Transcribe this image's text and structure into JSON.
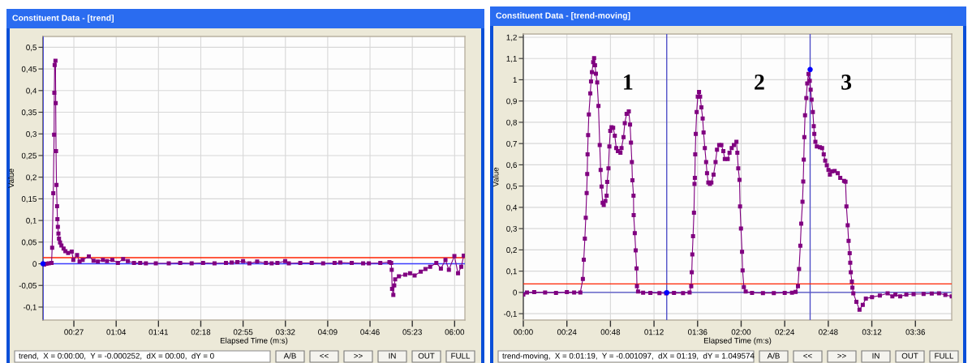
{
  "chart_data": [
    {
      "type": "line",
      "title": "Constituent Data - [trend]",
      "xlabel": "Elapsed Time (m:s)",
      "ylabel": "Value",
      "xlim": [
        0,
        369
      ],
      "ylim": [
        -0.13,
        0.525
      ],
      "xticks": [
        {
          "value": 27,
          "label": "00:27"
        },
        {
          "value": 64,
          "label": "01:04"
        },
        {
          "value": 101,
          "label": "01:41"
        },
        {
          "value": 138,
          "label": "02:18"
        },
        {
          "value": 175,
          "label": "02:55"
        },
        {
          "value": 212,
          "label": "03:32"
        },
        {
          "value": 249,
          "label": "04:09"
        },
        {
          "value": 286,
          "label": "04:46"
        },
        {
          "value": 323,
          "label": "05:23"
        },
        {
          "value": 360,
          "label": "06:00"
        }
      ],
      "yticks": [
        {
          "value": -0.1,
          "label": "-0,1"
        },
        {
          "value": -0.05,
          "label": "-0,05"
        },
        0,
        {
          "value": 0.05,
          "label": "0,05"
        },
        {
          "value": 0.1,
          "label": "0,1"
        },
        {
          "value": 0.15,
          "label": "0,15"
        },
        {
          "value": 0.2,
          "label": "0,2"
        },
        {
          "value": 0.25,
          "label": "0,25"
        },
        {
          "value": 0.3,
          "label": "0,3"
        },
        {
          "value": 0.35,
          "label": "0,35"
        },
        {
          "value": 0.4,
          "label": "0,4"
        },
        {
          "value": 0.45,
          "label": "0,45"
        },
        {
          "value": 0.5,
          "label": "0,5"
        }
      ],
      "grid": true,
      "marker": "square",
      "line_style": "solid",
      "series": [
        {
          "color": "#800080",
          "x": [
            1,
            3,
            5,
            7.5,
            8.0,
            9.0,
            9.7,
            9.9,
            10.2,
            10.9,
            11.1,
            11.4,
            11.8,
            12.3,
            12.6,
            13.0,
            13.5,
            14.0,
            14.9,
            16.1,
            18.0,
            19.6,
            22,
            25.1,
            26.5,
            29.8,
            32,
            34.7,
            40.1,
            44.2,
            48,
            52.4,
            56,
            60.6,
            65.5,
            70.1,
            74.2,
            79.6,
            85,
            90,
            98.7,
            110,
            120,
            130,
            140,
            150,
            160,
            165,
            170,
            175,
            180.5,
            187.3,
            195,
            200,
            205,
            211.8,
            215,
            225,
            235,
            245,
            255,
            260,
            270,
            280,
            285,
            295,
            303,
            304.5,
            305,
            305.3,
            306.4,
            307.2,
            308,
            311.3,
            316.8,
            321,
            325,
            330.4,
            334.5,
            338.6,
            344,
            348,
            352,
            355,
            359.8,
            363,
            365.8,
            368
          ],
          "values": [
            -0.002,
            0.0,
            0.001,
            0.002,
            0.037,
            0.163,
            0.298,
            0.395,
            0.459,
            0.469,
            0.371,
            0.26,
            0.182,
            0.133,
            0.103,
            0.085,
            0.07,
            0.058,
            0.049,
            0.042,
            0.035,
            0.029,
            0.025,
            0.028,
            0.009,
            0.02,
            0.005,
            0.009,
            0.017,
            0.007,
            0.005,
            0.009,
            0.006,
            0.009,
            0.002,
            0.011,
            0.006,
            0.002,
            0.002,
            0.001,
            0.001,
            0.001,
            0.002,
            0.001,
            0.002,
            0.001,
            0.002,
            0.003,
            0.004,
            0.006,
            0.001,
            0.005,
            0.002,
            0.001,
            0.002,
            0.006,
            0.001,
            0.002,
            0.002,
            0.001,
            0.002,
            0.003,
            0.002,
            0.001,
            0.001,
            0.002,
            0.004,
            0.002,
            -0.014,
            -0.058,
            -0.072,
            -0.05,
            -0.036,
            -0.029,
            -0.025,
            -0.022,
            -0.027,
            -0.018,
            -0.012,
            -0.007,
            0.002,
            -0.011,
            0.009,
            -0.014,
            0.018,
            -0.022,
            -0.007,
            0.019
          ]
        },
        {
          "type": "scatter",
          "color": "#0000ff",
          "marker": "circle",
          "x": [
            0
          ],
          "values": [
            0.0
          ]
        }
      ],
      "ref_lines": [
        {
          "axis": "x",
          "value": 0,
          "color": "#3c3cff"
        },
        {
          "axis": "y",
          "value": 0,
          "color": "#3c3cff"
        },
        {
          "axis": "y",
          "value": 0.014,
          "color": "#ff2200"
        }
      ],
      "annotations": [
        "trend,  X = 0:00:00,  Y = -0.000252,  dX = 00:00,  dY = 0",
        "A/B",
        "<<",
        ">>",
        "IN",
        "OUT",
        "FULL"
      ]
    },
    {
      "type": "line",
      "title": "Constituent Data - [trend-moving]",
      "xlabel": "Elapsed Time (m:s)",
      "ylabel": "Value",
      "xlim": [
        0,
        236
      ],
      "ylim": [
        -0.13,
        1.215
      ],
      "xticks": [
        {
          "value": 0,
          "label": "00:00"
        },
        {
          "value": 24,
          "label": "00:24"
        },
        {
          "value": 48,
          "label": "00:48"
        },
        {
          "value": 72,
          "label": "01:12"
        },
        {
          "value": 96,
          "label": "01:36"
        },
        {
          "value": 120,
          "label": "02:00"
        },
        {
          "value": 144,
          "label": "02:24"
        },
        {
          "value": 168,
          "label": "02:48"
        },
        {
          "value": 192,
          "label": "03:12"
        },
        {
          "value": 216,
          "label": "03:36"
        }
      ],
      "yticks": [
        {
          "value": -0.1,
          "label": "-0,1"
        },
        0,
        {
          "value": 0.1,
          "label": "0,1"
        },
        {
          "value": 0.2,
          "label": "0,2"
        },
        {
          "value": 0.3,
          "label": "0,3"
        },
        {
          "value": 0.4,
          "label": "0,4"
        },
        {
          "value": 0.5,
          "label": "0,5"
        },
        {
          "value": 0.6,
          "label": "0,6"
        },
        {
          "value": 0.7,
          "label": "0,7"
        },
        {
          "value": 0.8,
          "label": "0,8"
        },
        {
          "value": 0.9,
          "label": "0,9"
        },
        1,
        {
          "value": 1.1,
          "label": "1,1"
        },
        {
          "value": 1.2,
          "label": "1,2"
        }
      ],
      "grid": true,
      "marker": "square",
      "line_style": "solid",
      "series": [
        {
          "color": "#800080",
          "x": [
            0,
            2,
            6,
            12,
            18,
            24,
            28,
            31.4,
            32.8,
            33.3,
            33.9,
            34.4,
            34.9,
            35.2,
            35.4,
            35.7,
            36.1,
            36.9,
            37.3,
            37.8,
            38.5,
            39.0,
            39.5,
            40.0,
            40.7,
            41.4,
            42.1,
            42.6,
            43.1,
            43.7,
            44.3,
            45.2,
            45.9,
            46.2,
            46.9,
            47.4,
            47.9,
            48.6,
            49.5,
            50.4,
            51.2,
            52.1,
            53.5,
            54.1,
            55.2,
            55.9,
            56.9,
            58.1,
            58.8,
            59.3,
            59.8,
            60.1,
            60.7,
            60.8,
            61.4,
            61.9,
            62.4,
            62.6,
            63.2,
            66,
            70,
            75,
            78.7,
            83,
            88,
            91.6,
            92.5,
            92.8,
            93.1,
            93.5,
            94.0,
            94.3,
            94.5,
            94.7,
            95.0,
            95.5,
            96.1,
            96.8,
            97.4,
            98.1,
            98.8,
            99.3,
            100.0,
            100.7,
            101.2,
            101.9,
            102.8,
            103.6,
            104.8,
            105.9,
            106.7,
            107.9,
            109.1,
            110.2,
            111.0,
            112.6,
            113.6,
            114.8,
            116.0,
            117.4,
            117.9,
            118.4,
            119.1,
            119.4,
            119.9,
            120.5,
            120.8,
            121.5,
            122.5,
            126,
            132,
            138,
            144,
            148,
            150,
            151.3,
            151.9,
            152.6,
            153.1,
            153.8,
            154.2,
            154.5,
            154.8,
            155.2,
            155.9,
            156.4,
            157.1,
            157.8,
            158.3,
            158.8,
            159.5,
            160.0,
            160.3,
            160.9,
            161.7,
            163.4,
            164.6,
            165.5,
            166.3,
            167.2,
            168.1,
            168.9,
            170.1,
            171.5,
            173.2,
            174.6,
            176.7,
            177.5,
            178.0,
            178.7,
            179.2,
            179.8,
            180.1,
            180.4,
            181.0,
            181.3,
            181.8,
            183.5,
            185.2,
            187.0,
            188.7,
            192.1,
            196.4,
            200.7,
            203.3,
            205,
            207.6,
            211,
            215,
            220.5,
            225,
            229,
            232.5,
            236
          ],
          "values": [
            -0.01,
            0.0,
            0.001,
            0.0,
            -0.002,
            0.001,
            0.0,
            0.0,
            0.063,
            0.154,
            0.253,
            0.351,
            0.467,
            0.557,
            0.649,
            0.74,
            0.837,
            0.936,
            0.992,
            1.036,
            1.083,
            1.102,
            1.068,
            1.028,
            0.987,
            0.877,
            0.693,
            0.576,
            0.498,
            0.422,
            0.411,
            0.43,
            0.455,
            0.52,
            0.583,
            0.686,
            0.76,
            0.777,
            0.774,
            0.737,
            0.679,
            0.664,
            0.657,
            0.679,
            0.73,
            0.796,
            0.84,
            0.851,
            0.789,
            0.704,
            0.613,
            0.527,
            0.455,
            0.363,
            0.279,
            0.198,
            0.113,
            0.029,
            0.004,
            -0.001,
            -0.002,
            -0.003,
            -0.004,
            -0.002,
            -0.003,
            0.0,
            0.029,
            0.095,
            0.179,
            0.264,
            0.375,
            0.51,
            0.539,
            0.649,
            0.745,
            0.848,
            0.921,
            0.943,
            0.921,
            0.87,
            0.818,
            0.752,
            0.679,
            0.613,
            0.561,
            0.517,
            0.51,
            0.517,
            0.554,
            0.613,
            0.671,
            0.693,
            0.693,
            0.664,
            0.627,
            0.627,
            0.657,
            0.679,
            0.693,
            0.708,
            0.657,
            0.583,
            0.529,
            0.404,
            0.301,
            0.191,
            0.103,
            0.025,
            0.004,
            -0.002,
            -0.003,
            -0.003,
            -0.002,
            -0.001,
            0.002,
            0.029,
            0.11,
            0.22,
            0.323,
            0.426,
            0.522,
            0.624,
            0.73,
            0.833,
            0.914,
            0.983,
            1.027,
            0.995,
            0.953,
            0.906,
            0.848,
            0.782,
            0.745,
            0.708,
            0.686,
            0.683,
            0.679,
            0.649,
            0.62,
            0.598,
            0.576,
            0.554,
            0.569,
            0.571,
            0.561,
            0.539,
            0.524,
            0.521,
            0.404,
            0.316,
            0.242,
            0.184,
            0.14,
            0.095,
            0.051,
            0.022,
            -0.004,
            -0.044,
            -0.081,
            -0.059,
            -0.029,
            -0.022,
            -0.015,
            -0.004,
            -0.019,
            -0.01,
            -0.019,
            -0.01,
            -0.008,
            -0.007,
            -0.005,
            -0.004,
            -0.012,
            -0.019
          ]
        },
        {
          "type": "scatter",
          "color": "#0000ff",
          "marker": "circle",
          "x": [
            79,
            158
          ],
          "values": [
            -0.001,
            1.048
          ]
        }
      ],
      "ref_lines": [
        {
          "axis": "x",
          "value": 79,
          "color": "#5050c8"
        },
        {
          "axis": "x",
          "value": 158,
          "color": "#5050c8"
        },
        {
          "axis": "y",
          "value": 0,
          "color": "#5050c8"
        },
        {
          "axis": "y",
          "value": 0.04,
          "color": "#ff2200"
        }
      ],
      "annotations": [
        "1",
        "2",
        "3",
        "trend-moving,  X = 0:01:19,  Y = -0.001097,  dX = 01:19,  dY = 1.049574",
        "A/B",
        "<<",
        ">>",
        "IN",
        "OUT",
        "FULL"
      ]
    }
  ]
}
